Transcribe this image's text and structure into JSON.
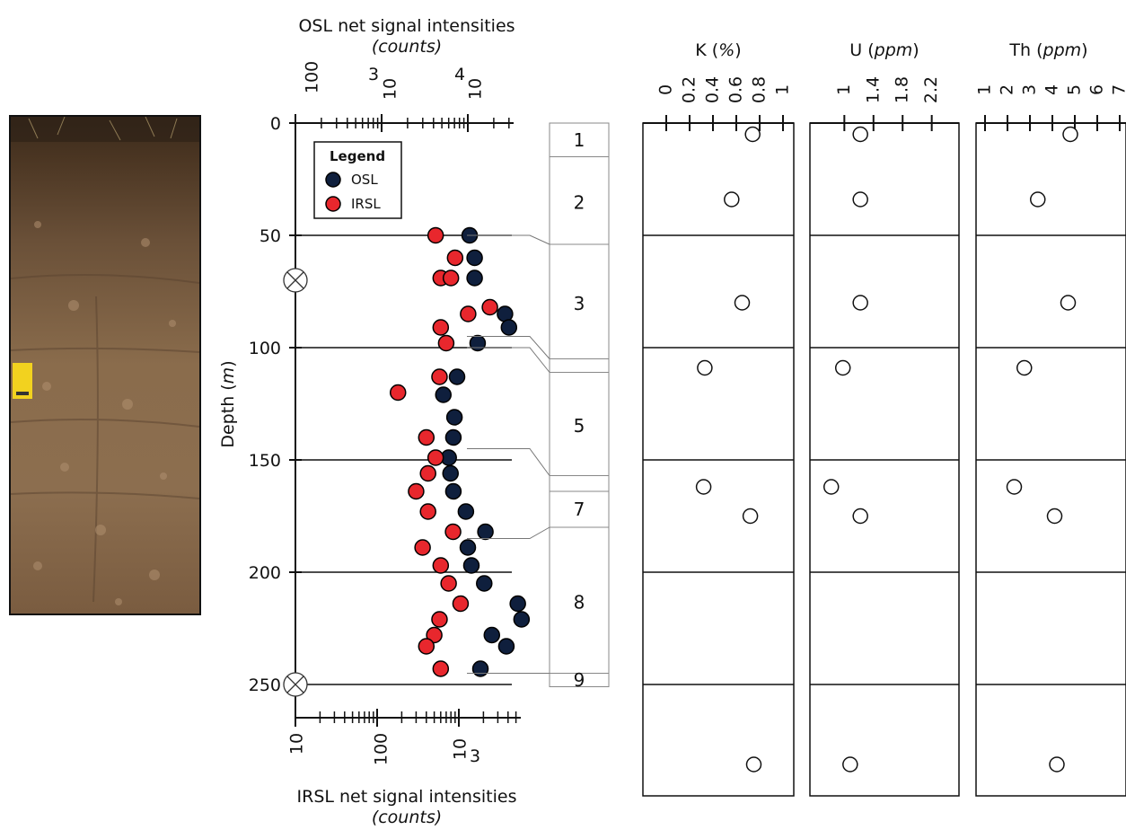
{
  "chart_data": [
    {
      "type": "scatter",
      "title": "OSL net signal intensities",
      "title_unit": "counts",
      "xlabel_bottom": "IRSL net signal intensities",
      "xlabel_bottom_unit": "counts",
      "ylabel": "Depth",
      "ylabel_unit": "m",
      "x_scale": "log",
      "xlim_top_osl": [
        100,
        100000
      ],
      "xlim_bottom_irsl": [
        10,
        10000
      ],
      "ylim": [
        0,
        260
      ],
      "y_reversed": true,
      "y_ticks": [
        "0",
        "50",
        "100",
        "150",
        "200",
        "250"
      ],
      "x_ticks_top": [
        "100",
        "10",
        "3",
        "10",
        "4"
      ],
      "x_ticks_bottom": [
        "10",
        "100",
        "10",
        "3"
      ],
      "legend": {
        "title": "Legend",
        "position": "top-left",
        "entries": [
          "OSL",
          "IRSL"
        ]
      },
      "series": [
        {
          "name": "OSL",
          "color": "#0f1f3d",
          "depth": [
            50,
            60,
            69,
            85,
            91,
            98,
            113,
            121,
            131,
            140,
            149,
            156,
            164,
            173,
            182,
            189,
            197,
            205,
            214,
            221,
            228,
            233,
            243
          ],
          "values": [
            10500,
            12000,
            12000,
            27000,
            30000,
            13000,
            7500,
            5200,
            7000,
            6800,
            6000,
            6300,
            6800,
            9500,
            16000,
            10000,
            11000,
            15500,
            38000,
            42000,
            19000,
            28000,
            14000
          ]
        },
        {
          "name": "IRSL",
          "color": "#e8272d",
          "depth": [
            50,
            60,
            69,
            69,
            82,
            85,
            91,
            98,
            113,
            120,
            140,
            149,
            156,
            164,
            173,
            182,
            189,
            197,
            205,
            214,
            221,
            228,
            233,
            243
          ],
          "values": [
            520,
            900,
            600,
            800,
            2400,
            1300,
            600,
            700,
            580,
            180,
            400,
            520,
            420,
            300,
            420,
            850,
            360,
            600,
            750,
            1050,
            580,
            500,
            400,
            600
          ]
        }
      ],
      "markers": [
        {
          "depth": 70,
          "symbol": "crossed-circle"
        },
        {
          "depth": 250,
          "symbol": "crossed-circle"
        }
      ]
    },
    {
      "type": "table",
      "name": "unit-column",
      "units": [
        {
          "label": "1",
          "top": 0,
          "bottom": 15
        },
        {
          "label": "2",
          "top": 15,
          "bottom": 54
        },
        {
          "label": "3",
          "top": 54,
          "bottom": 105
        },
        {
          "label": "",
          "top": 105,
          "bottom": 111
        },
        {
          "label": "5",
          "top": 111,
          "bottom": 157
        },
        {
          "label": "",
          "top": 157,
          "bottom": 164
        },
        {
          "label": "7",
          "top": 164,
          "bottom": 180
        },
        {
          "label": "8",
          "top": 180,
          "bottom": 245
        },
        {
          "label": "9",
          "top": 245,
          "bottom": 251
        }
      ]
    },
    {
      "type": "scatter",
      "name": "K",
      "title": "K (%)",
      "xlim": [
        0,
        1
      ],
      "x_ticks": [
        "0",
        "0.2",
        "0.4",
        "0.6",
        "0.8",
        "1"
      ],
      "points": [
        {
          "depth": 5,
          "value": 0.74
        },
        {
          "depth": 34,
          "value": 0.56
        },
        {
          "depth": 80,
          "value": 0.65
        },
        {
          "depth": 109,
          "value": 0.33
        },
        {
          "depth": 162,
          "value": 0.32
        },
        {
          "depth": 175,
          "value": 0.72
        },
        {
          "depth": 270,
          "value": 0.75
        }
      ]
    },
    {
      "type": "scatter",
      "name": "U",
      "title": "U (ppm)",
      "xlim": [
        0.7,
        2.5
      ],
      "x_ticks": [
        "1",
        "1.4",
        "1.8",
        "2.2"
      ],
      "points": [
        {
          "depth": 5,
          "value": 1.22
        },
        {
          "depth": 34,
          "value": 1.22
        },
        {
          "depth": 80,
          "value": 1.22
        },
        {
          "depth": 109,
          "value": 0.98
        },
        {
          "depth": 162,
          "value": 0.82
        },
        {
          "depth": 175,
          "value": 1.22
        },
        {
          "depth": 270,
          "value": 1.08
        }
      ]
    },
    {
      "type": "scatter",
      "name": "Th",
      "title": "Th (ppm)",
      "xlim": [
        1,
        7
      ],
      "x_ticks": [
        "1",
        "2",
        "3",
        "4",
        "5",
        "6",
        "7"
      ],
      "points": [
        {
          "depth": 5,
          "value": 4.8
        },
        {
          "depth": 34,
          "value": 3.35
        },
        {
          "depth": 80,
          "value": 4.7
        },
        {
          "depth": 109,
          "value": 2.75
        },
        {
          "depth": 162,
          "value": 2.3
        },
        {
          "depth": 175,
          "value": 4.1
        },
        {
          "depth": 270,
          "value": 4.2
        }
      ]
    }
  ]
}
